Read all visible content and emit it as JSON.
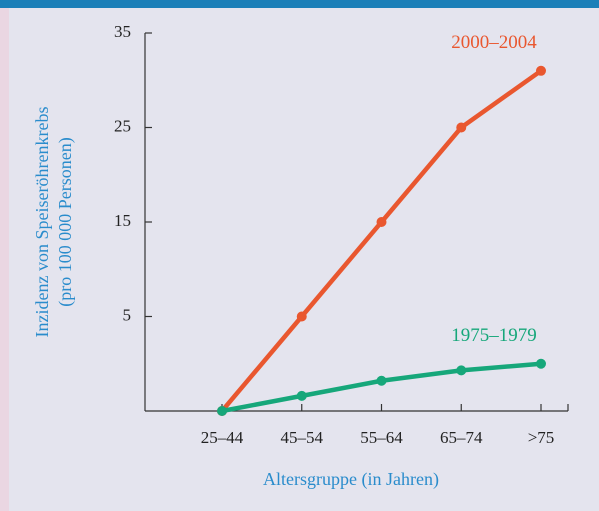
{
  "chart_data": {
    "type": "line",
    "y_label": [
      "Inzidenz von Speiseröhrenkrebs",
      "(pro 100 000 Personen)"
    ],
    "x_label": "Altersgruppe (in Jahren)",
    "categories": [
      "25–44",
      "45–54",
      "55–64",
      "65–74",
      ">75"
    ],
    "series": [
      {
        "name": "2000–2004",
        "color": "#e9572f",
        "values": [
          -5,
          5,
          15,
          25,
          31
        ]
      },
      {
        "name": "1975–1979",
        "color": "#16a77a",
        "values": [
          -5,
          -3.4,
          -1.8,
          -0.7,
          0
        ]
      }
    ],
    "ylim": [
      -5,
      35
    ],
    "yticks": [
      5,
      15,
      25,
      35
    ],
    "grid": false
  }
}
